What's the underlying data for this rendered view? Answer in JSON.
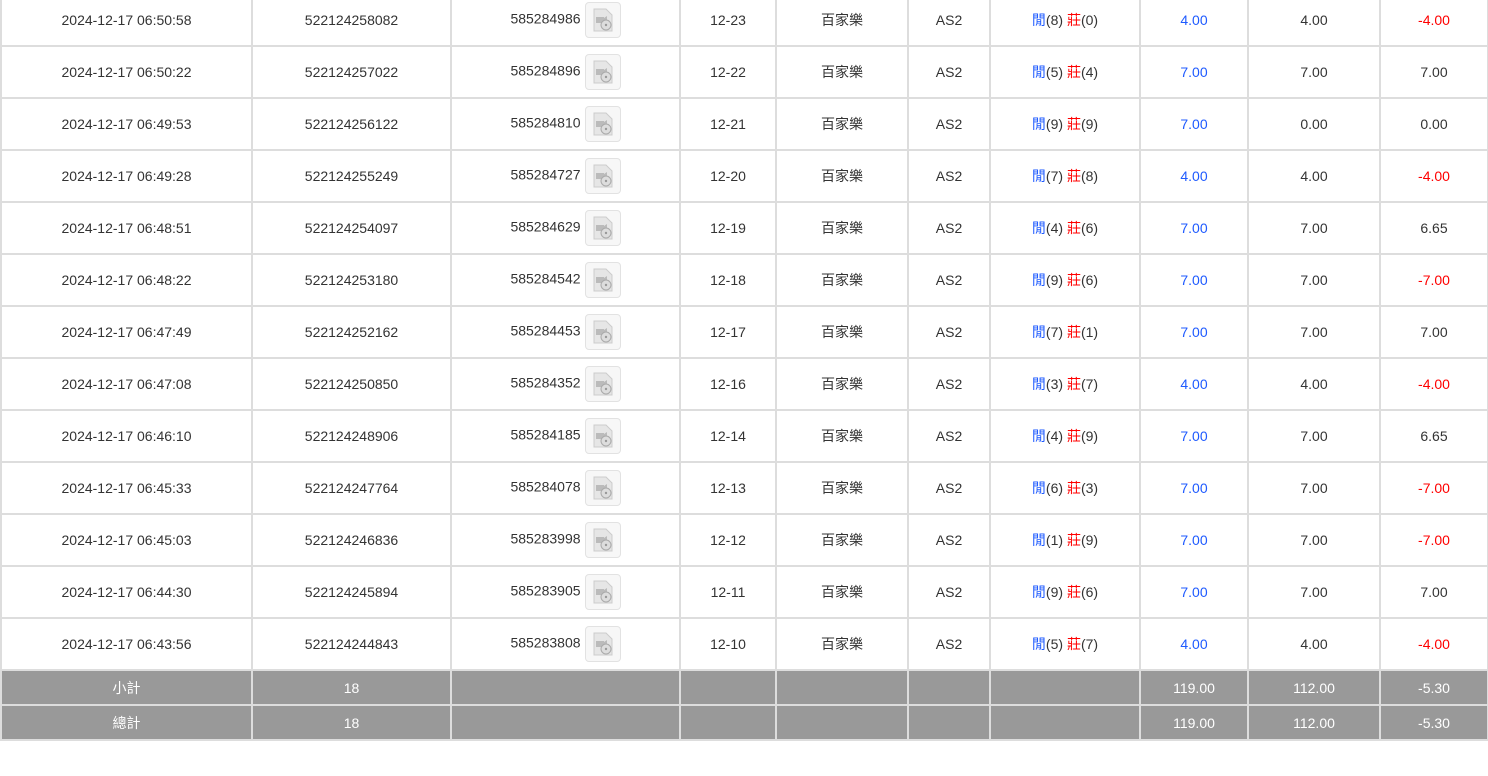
{
  "rows": [
    {
      "time": "2024-12-17 06:50:58",
      "bet_id": "522124258082",
      "round_id": "585284986",
      "shoe": "12-23",
      "game": "百家樂",
      "table": "AS2",
      "player_label": "閒",
      "player": "(8)",
      "banker_label": "莊",
      "banker": "(0)",
      "bet": "4.00",
      "valid": "4.00",
      "win": "-4.00"
    },
    {
      "time": "2024-12-17 06:50:22",
      "bet_id": "522124257022",
      "round_id": "585284896",
      "shoe": "12-22",
      "game": "百家樂",
      "table": "AS2",
      "player_label": "閒",
      "player": "(5)",
      "banker_label": "莊",
      "banker": "(4)",
      "bet": "7.00",
      "valid": "7.00",
      "win": "7.00"
    },
    {
      "time": "2024-12-17 06:49:53",
      "bet_id": "522124256122",
      "round_id": "585284810",
      "shoe": "12-21",
      "game": "百家樂",
      "table": "AS2",
      "player_label": "閒",
      "player": "(9)",
      "banker_label": "莊",
      "banker": "(9)",
      "bet": "7.00",
      "valid": "0.00",
      "win": "0.00"
    },
    {
      "time": "2024-12-17 06:49:28",
      "bet_id": "522124255249",
      "round_id": "585284727",
      "shoe": "12-20",
      "game": "百家樂",
      "table": "AS2",
      "player_label": "閒",
      "player": "(7)",
      "banker_label": "莊",
      "banker": "(8)",
      "bet": "4.00",
      "valid": "4.00",
      "win": "-4.00"
    },
    {
      "time": "2024-12-17 06:48:51",
      "bet_id": "522124254097",
      "round_id": "585284629",
      "shoe": "12-19",
      "game": "百家樂",
      "table": "AS2",
      "player_label": "閒",
      "player": "(4)",
      "banker_label": "莊",
      "banker": "(6)",
      "bet": "7.00",
      "valid": "7.00",
      "win": "6.65"
    },
    {
      "time": "2024-12-17 06:48:22",
      "bet_id": "522124253180",
      "round_id": "585284542",
      "shoe": "12-18",
      "game": "百家樂",
      "table": "AS2",
      "player_label": "閒",
      "player": "(9)",
      "banker_label": "莊",
      "banker": "(6)",
      "bet": "7.00",
      "valid": "7.00",
      "win": "-7.00"
    },
    {
      "time": "2024-12-17 06:47:49",
      "bet_id": "522124252162",
      "round_id": "585284453",
      "shoe": "12-17",
      "game": "百家樂",
      "table": "AS2",
      "player_label": "閒",
      "player": "(7)",
      "banker_label": "莊",
      "banker": "(1)",
      "bet": "7.00",
      "valid": "7.00",
      "win": "7.00"
    },
    {
      "time": "2024-12-17 06:47:08",
      "bet_id": "522124250850",
      "round_id": "585284352",
      "shoe": "12-16",
      "game": "百家樂",
      "table": "AS2",
      "player_label": "閒",
      "player": "(3)",
      "banker_label": "莊",
      "banker": "(7)",
      "bet": "4.00",
      "valid": "4.00",
      "win": "-4.00"
    },
    {
      "time": "2024-12-17 06:46:10",
      "bet_id": "522124248906",
      "round_id": "585284185",
      "shoe": "12-14",
      "game": "百家樂",
      "table": "AS2",
      "player_label": "閒",
      "player": "(4)",
      "banker_label": "莊",
      "banker": "(9)",
      "bet": "7.00",
      "valid": "7.00",
      "win": "6.65"
    },
    {
      "time": "2024-12-17 06:45:33",
      "bet_id": "522124247764",
      "round_id": "585284078",
      "shoe": "12-13",
      "game": "百家樂",
      "table": "AS2",
      "player_label": "閒",
      "player": "(6)",
      "banker_label": "莊",
      "banker": "(3)",
      "bet": "7.00",
      "valid": "7.00",
      "win": "-7.00"
    },
    {
      "time": "2024-12-17 06:45:03",
      "bet_id": "522124246836",
      "round_id": "585283998",
      "shoe": "12-12",
      "game": "百家樂",
      "table": "AS2",
      "player_label": "閒",
      "player": "(1)",
      "banker_label": "莊",
      "banker": "(9)",
      "bet": "7.00",
      "valid": "7.00",
      "win": "-7.00"
    },
    {
      "time": "2024-12-17 06:44:30",
      "bet_id": "522124245894",
      "round_id": "585283905",
      "shoe": "12-11",
      "game": "百家樂",
      "table": "AS2",
      "player_label": "閒",
      "player": "(9)",
      "banker_label": "莊",
      "banker": "(6)",
      "bet": "7.00",
      "valid": "7.00",
      "win": "7.00"
    },
    {
      "time": "2024-12-17 06:43:56",
      "bet_id": "522124244843",
      "round_id": "585283808",
      "shoe": "12-10",
      "game": "百家樂",
      "table": "AS2",
      "player_label": "閒",
      "player": "(5)",
      "banker_label": "莊",
      "banker": "(7)",
      "bet": "4.00",
      "valid": "4.00",
      "win": "-4.00"
    }
  ],
  "subtotal": {
    "label": "小計",
    "count": "18",
    "bet": "119.00",
    "valid": "112.00",
    "win": "-5.30"
  },
  "total": {
    "label": "總計",
    "count": "18",
    "bet": "119.00",
    "valid": "112.00",
    "win": "-5.30"
  },
  "colors": {
    "blue": "#1e5aff",
    "red": "#ff0000",
    "footer_bg": "#999999"
  },
  "icons": {
    "replay": "video-replay-icon"
  }
}
